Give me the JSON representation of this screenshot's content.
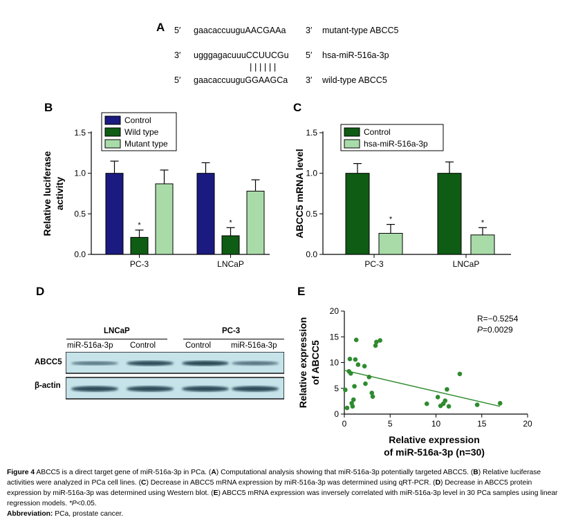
{
  "panel_a": {
    "label": "A",
    "rows": [
      {
        "five": "5′",
        "seq": "gaacaccuuguAACGAAa",
        "three": "3′",
        "name": "mutant-type ABCC5"
      },
      {
        "five": "3′",
        "seq": "ugggagacuuuCCUUCGu",
        "three": "5′",
        "name": "hsa-miR-516a-3p"
      },
      {
        "five": "5′",
        "seq": "gaacaccuuguGGAAGCa",
        "three": "3′",
        "name": "wild-type ABCC5"
      }
    ],
    "pairing": "||||||"
  },
  "chart_data": [
    {
      "panel": "B",
      "type": "bar",
      "categories": [
        "PC-3",
        "LNCaP"
      ],
      "series": [
        {
          "name": "Control",
          "color": "#1a1a80",
          "values": [
            1.0,
            1.0
          ],
          "errors": [
            0.15,
            0.13
          ],
          "sig": [
            "",
            ""
          ]
        },
        {
          "name": "Wild type",
          "color": "#0f5c14",
          "values": [
            0.21,
            0.23
          ],
          "errors": [
            0.09,
            0.1
          ],
          "sig": [
            "*",
            "*"
          ]
        },
        {
          "name": "Mutant type",
          "color": "#a9dba9",
          "values": [
            0.87,
            0.78
          ],
          "errors": [
            0.17,
            0.14
          ],
          "sig": [
            "",
            ""
          ]
        }
      ],
      "ylabel": "Relative luciferase activity",
      "ylabel_lines": [
        "Relative luciferase",
        "activity"
      ],
      "yticks": [
        "0.0",
        "0.5",
        "1.0",
        "1.5"
      ],
      "ylim": [
        0,
        1.5
      ]
    },
    {
      "panel": "C",
      "type": "bar",
      "categories": [
        "PC-3",
        "LNCaP"
      ],
      "series": [
        {
          "name": "Control",
          "color": "#0f5c14",
          "values": [
            1.0,
            1.0
          ],
          "errors": [
            0.12,
            0.14
          ],
          "sig": [
            "",
            ""
          ]
        },
        {
          "name": "hsa-miR-516a-3p",
          "color": "#a9dba9",
          "values": [
            0.26,
            0.24
          ],
          "errors": [
            0.11,
            0.09
          ],
          "sig": [
            "*",
            "*"
          ]
        }
      ],
      "ylabel": "ABCC5 mRNA level",
      "yticks": [
        "0.0",
        "0.5",
        "1.0",
        "1.5"
      ],
      "ylim": [
        0,
        1.5
      ]
    },
    {
      "panel": "E",
      "type": "scatter",
      "xlabel_lines": [
        "Relative expression",
        "of miR-516a-3p (n=30)"
      ],
      "ylabel_lines": [
        "Relative expression",
        "of ABCC5"
      ],
      "xlim": [
        0,
        20
      ],
      "ylim": [
        0,
        20
      ],
      "xticks": [
        "0",
        "5",
        "10",
        "15",
        "20"
      ],
      "yticks": [
        "0",
        "5",
        "10",
        "15",
        "20"
      ],
      "stat_r": "R=−0.5254",
      "stat_p_italic": "P",
      "stat_p_value": "=0.0029",
      "color": "#2e8b2e",
      "fit_line": {
        "x": [
          0,
          17
        ],
        "y": [
          8.5,
          1.5
        ]
      },
      "x": [
        0.1,
        0.3,
        0.5,
        0.6,
        0.7,
        0.8,
        0.9,
        1.0,
        1.1,
        1.2,
        1.3,
        1.5,
        2.2,
        2.3,
        2.7,
        3.0,
        3.1,
        3.4,
        3.5,
        3.9,
        9.0,
        10.2,
        10.5,
        10.8,
        11.0,
        11.2,
        11.4,
        12.6,
        14.5,
        17.0
      ],
      "y": [
        4.7,
        1.2,
        8.3,
        10.7,
        7.9,
        2.1,
        1.5,
        2.8,
        5.4,
        10.6,
        14.4,
        9.6,
        9.3,
        5.9,
        7.2,
        4.1,
        3.4,
        13.3,
        14.0,
        14.3,
        2.0,
        3.3,
        1.6,
        2.0,
        2.6,
        4.8,
        1.5,
        7.8,
        1.8,
        2.1
      ]
    }
  ],
  "panel_b_label": "B",
  "panel_c_label": "C",
  "panel_d": {
    "label": "D",
    "groups": [
      "LNCaP",
      "PC-3"
    ],
    "lanes": [
      "miR-516a-3p",
      "Control",
      "Control",
      "miR-516a-3p"
    ],
    "rows": [
      "ABCC5",
      "β-actin"
    ],
    "abcc5_intensity": [
      0.45,
      0.85,
      0.9,
      0.5
    ],
    "actin_intensity": [
      0.85,
      0.85,
      0.85,
      0.85
    ]
  },
  "panel_e_label": "E",
  "caption": {
    "fig_label": "Figure 4",
    "title": "ABCC5 is a direct target gene of miR-516a-3p in PCa.",
    "parts": [
      {
        "letter": "A",
        "text": "Computational analysis showing that miR-516a-3p potentially targeted ABCC5."
      },
      {
        "letter": "B",
        "text": "Relative luciferase activities were analyzed in PCa cell lines."
      },
      {
        "letter": "C",
        "text": "Decrease in ABCC5 mRNA expression by miR-516a-3p was determined using qRT-PCR."
      },
      {
        "letter": "D",
        "text": "Decrease in ABCC5 protein expression by miR-516a-3p was determined using Western blot."
      },
      {
        "letter": "E",
        "text": "ABCC5 mRNA expression was inversely correlated with miR-516a-3p level in 30 PCa samples using linear regression models."
      }
    ],
    "note_italic": "*P",
    "note_rest": "<0.05.",
    "abbrev_label": "Abbreviation:",
    "abbrev_text": "PCa, prostate cancer."
  }
}
